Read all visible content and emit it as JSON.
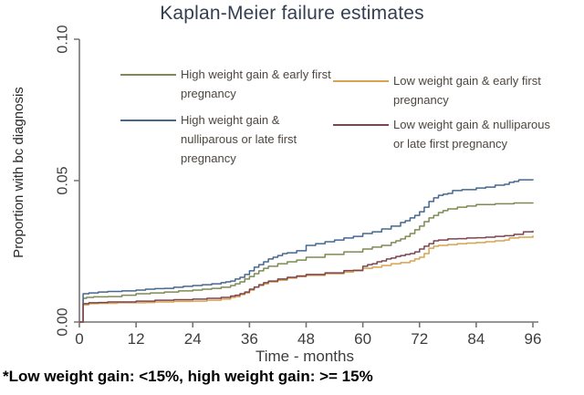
{
  "title": "Kaplan-Meier failure estimates",
  "footnote": "*Low weight gain: <15%, high weight gain: >= 15%",
  "legend": {
    "items": [
      {
        "series": 0,
        "lines": [
          "High weight gain & early first",
          "pregnancy"
        ]
      },
      {
        "series": 1,
        "lines": [
          "High weight gain &",
          "nulliparous or late first",
          "pregnancy"
        ]
      },
      {
        "series": 2,
        "lines": [
          "Low weight gain & early first",
          "pregnancy"
        ]
      },
      {
        "series": 3,
        "lines": [
          "Low weight gain & nulliparous",
          "or late first pregnancy"
        ]
      }
    ]
  },
  "chart_data": {
    "type": "line",
    "subtype": "kaplan-meier-step",
    "title": "Kaplan-Meier failure estimates",
    "xlabel": "Time - months",
    "ylabel": "Proportion with bc diagnosis",
    "xlim": [
      0,
      96
    ],
    "ylim": [
      0,
      0.1
    ],
    "xticks": [
      0,
      12,
      24,
      36,
      48,
      60,
      72,
      84,
      96
    ],
    "yticks": {
      "values": [
        0,
        0.05,
        0.1
      ],
      "labels": [
        "0.00",
        "0.05",
        "0.10"
      ]
    },
    "grid": false,
    "legend_position": "top-inside-two-columns",
    "axis_color": "#737373",
    "tick_label_color": "#3d3d3d",
    "series": [
      {
        "name": "High weight gain & early first pregnancy",
        "color": "#7d8a52",
        "x": [
          0,
          0.8,
          1.5,
          3,
          6,
          9,
          12,
          15,
          18,
          21,
          24,
          26,
          28,
          30,
          32,
          33,
          34,
          35,
          36,
          37,
          38,
          39,
          40,
          42,
          44,
          46,
          48,
          52,
          56,
          60,
          62,
          64,
          66,
          67,
          68,
          69,
          70,
          71,
          72,
          73,
          74,
          75,
          76,
          77,
          78,
          80,
          82,
          84,
          88,
          92,
          96
        ],
        "y": [
          0,
          0.0084,
          0.0087,
          0.0089,
          0.009,
          0.0095,
          0.01,
          0.0103,
          0.0106,
          0.011,
          0.0113,
          0.0116,
          0.0119,
          0.0123,
          0.0129,
          0.0135,
          0.0142,
          0.0152,
          0.0161,
          0.0171,
          0.0181,
          0.019,
          0.0197,
          0.0206,
          0.0213,
          0.0219,
          0.0229,
          0.0239,
          0.0248,
          0.0258,
          0.0265,
          0.0271,
          0.0281,
          0.0287,
          0.0294,
          0.0303,
          0.0313,
          0.0326,
          0.0339,
          0.0355,
          0.0368,
          0.0377,
          0.0387,
          0.0394,
          0.04,
          0.0406,
          0.041,
          0.0415,
          0.0418,
          0.0421,
          0.0423
        ]
      },
      {
        "name": "High weight gain & nulliparous or late first pregnancy",
        "color": "#45688e",
        "x": [
          0,
          0.8,
          2,
          4,
          6,
          9,
          12,
          14,
          16,
          18,
          20,
          22,
          24,
          26,
          28,
          30,
          31,
          32,
          33,
          34,
          35,
          36,
          37,
          38,
          39,
          40,
          41,
          42,
          43,
          44,
          46,
          48,
          50,
          52,
          54,
          56,
          58,
          60,
          62,
          64,
          66,
          68,
          69,
          70,
          71,
          72,
          73,
          74,
          75,
          76,
          77,
          78,
          79,
          81,
          84,
          86,
          88,
          90,
          91,
          92,
          93,
          96
        ],
        "y": [
          0,
          0.01,
          0.0103,
          0.0106,
          0.0108,
          0.011,
          0.0113,
          0.0116,
          0.0118,
          0.0119,
          0.0123,
          0.0126,
          0.0129,
          0.0132,
          0.0135,
          0.0139,
          0.0142,
          0.0145,
          0.0152,
          0.0158,
          0.0168,
          0.0181,
          0.0194,
          0.0203,
          0.0213,
          0.0223,
          0.0229,
          0.0235,
          0.0242,
          0.0245,
          0.0252,
          0.0271,
          0.0277,
          0.0284,
          0.029,
          0.0297,
          0.0303,
          0.0313,
          0.0319,
          0.0329,
          0.0339,
          0.0352,
          0.0358,
          0.0368,
          0.0377,
          0.039,
          0.0406,
          0.0426,
          0.0439,
          0.0448,
          0.0452,
          0.0455,
          0.0465,
          0.0468,
          0.0474,
          0.0477,
          0.0484,
          0.0487,
          0.0494,
          0.0497,
          0.0503,
          0.0505
        ]
      },
      {
        "name": "Low weight gain & early first pregnancy",
        "color": "#d8a24f",
        "x": [
          0,
          0.8,
          2,
          4,
          8,
          12,
          14,
          16,
          20,
          24,
          27,
          30,
          32,
          33,
          34,
          35,
          36,
          37,
          38,
          39,
          40,
          42,
          44,
          46,
          48,
          52,
          56,
          58,
          60,
          62,
          64,
          66,
          68,
          70,
          71,
          72,
          73,
          74,
          75,
          76,
          78,
          80,
          82,
          84,
          86,
          88,
          90,
          91,
          93,
          96
        ],
        "y": [
          0,
          0.0061,
          0.0065,
          0.0066,
          0.0068,
          0.0068,
          0.0069,
          0.0071,
          0.0073,
          0.0074,
          0.0077,
          0.0081,
          0.0087,
          0.009,
          0.0097,
          0.0103,
          0.0113,
          0.0123,
          0.0129,
          0.0135,
          0.0142,
          0.0148,
          0.0155,
          0.016,
          0.0165,
          0.0171,
          0.0177,
          0.0184,
          0.019,
          0.0194,
          0.02,
          0.0206,
          0.021,
          0.0216,
          0.0223,
          0.0229,
          0.0242,
          0.0261,
          0.0268,
          0.0271,
          0.0274,
          0.0277,
          0.0279,
          0.0281,
          0.0284,
          0.0287,
          0.029,
          0.0297,
          0.03,
          0.0306
        ]
      },
      {
        "name": "Low weight gain & nulliparous or late first pregnancy",
        "color": "#7c4550",
        "x": [
          0,
          0.8,
          2,
          4,
          6,
          12,
          16,
          20,
          24,
          27,
          30,
          32,
          33,
          34,
          35,
          36,
          37,
          38,
          39,
          40,
          42,
          44,
          46,
          48,
          52,
          56,
          60,
          61,
          62,
          63,
          64,
          65,
          66,
          67,
          68,
          69,
          70,
          71,
          72,
          73,
          74,
          75,
          76,
          78,
          80,
          82,
          84,
          86,
          88,
          90,
          92,
          94,
          96
        ],
        "y": [
          0,
          0.0065,
          0.0068,
          0.0069,
          0.0071,
          0.0074,
          0.0077,
          0.0079,
          0.0081,
          0.0084,
          0.0087,
          0.0092,
          0.0095,
          0.01,
          0.0106,
          0.0116,
          0.0124,
          0.0132,
          0.0139,
          0.0145,
          0.0152,
          0.0158,
          0.0163,
          0.0168,
          0.0174,
          0.0182,
          0.0197,
          0.0203,
          0.0206,
          0.0213,
          0.0216,
          0.0223,
          0.0226,
          0.0232,
          0.0235,
          0.0239,
          0.0242,
          0.0248,
          0.0258,
          0.0268,
          0.0277,
          0.0287,
          0.029,
          0.0294,
          0.0295,
          0.0297,
          0.0298,
          0.03,
          0.0303,
          0.0305,
          0.031,
          0.0319,
          0.0323
        ]
      }
    ]
  }
}
